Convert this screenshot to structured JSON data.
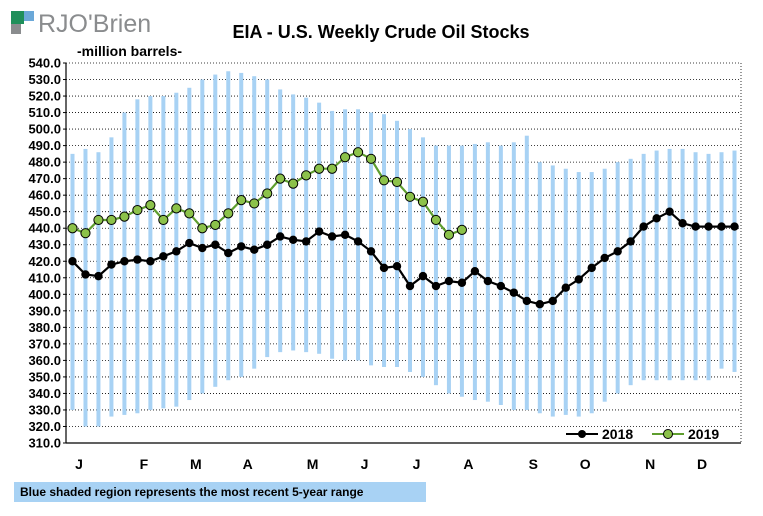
{
  "brand": {
    "name": "RJO'Brien",
    "logo_colors": [
      "#1f8f5a",
      "#6ba8d8",
      "#8a8c8e"
    ]
  },
  "chart_data": {
    "type": "line",
    "title": "EIA - U.S. Weekly Crude Oil Stocks",
    "ylabel": "-million  barrels-",
    "ylim": [
      310,
      540
    ],
    "ytick_step": 10,
    "grid": true,
    "gridline_style": "dotted",
    "legend_position": "bottom-right",
    "x_weeks": 52,
    "month_labels": [
      {
        "label": "J",
        "week": 1
      },
      {
        "label": "F",
        "week": 6
      },
      {
        "label": "M",
        "week": 10
      },
      {
        "label": "A",
        "week": 14
      },
      {
        "label": "M",
        "week": 19
      },
      {
        "label": "J",
        "week": 23
      },
      {
        "label": "J",
        "week": 27
      },
      {
        "label": "A",
        "week": 31
      },
      {
        "label": "S",
        "week": 36
      },
      {
        "label": "O",
        "week": 40
      },
      {
        "label": "N",
        "week": 45
      },
      {
        "label": "D",
        "week": 49
      }
    ],
    "range": {
      "name": "5-year range",
      "color": "#a8d2f4",
      "min": [
        330,
        320,
        320,
        326,
        327,
        328,
        330,
        331,
        332,
        336,
        340,
        344,
        348,
        350,
        355,
        362,
        365,
        366,
        365,
        364,
        361,
        360,
        360,
        357,
        356,
        356,
        353,
        350,
        345,
        340,
        338,
        336,
        335,
        333,
        330,
        330,
        328,
        326,
        327,
        326,
        328,
        335,
        340,
        345,
        348,
        348,
        348,
        348,
        348,
        348,
        355,
        353
      ],
      "max": [
        485,
        488,
        486,
        495,
        510,
        518,
        520,
        520,
        522,
        525,
        530,
        533,
        535,
        534,
        532,
        530,
        524,
        521,
        519,
        516,
        511,
        512,
        512,
        510,
        509,
        505,
        500,
        495,
        490,
        490,
        490,
        491,
        492,
        490,
        492,
        496,
        480,
        478,
        476,
        474,
        474,
        476,
        480,
        482,
        485,
        487,
        488,
        488,
        486,
        485,
        486,
        487
      ]
    },
    "series": [
      {
        "name": "2018",
        "color": "#000000",
        "marker_color": "#000000",
        "values": [
          420,
          412,
          411,
          418,
          420,
          421,
          420,
          423,
          426,
          431,
          428,
          430,
          425,
          429,
          427,
          430,
          435,
          433,
          432,
          438,
          435,
          436,
          432,
          426,
          416,
          417,
          405,
          411,
          405,
          408,
          407,
          414,
          408,
          405,
          401,
          396,
          394,
          396,
          404,
          409,
          416,
          422,
          426,
          432,
          441,
          446,
          450,
          443,
          441,
          441,
          441,
          441
        ]
      },
      {
        "name": "2019",
        "color": "#5e9e2e",
        "marker_color": "#8cc24a",
        "values": [
          440,
          437,
          445,
          445,
          447,
          451,
          454,
          445,
          452,
          449,
          440,
          442,
          449,
          457,
          455,
          461,
          470,
          467,
          472,
          476,
          476,
          483,
          486,
          482,
          469,
          468,
          459,
          456,
          445,
          436,
          439
        ]
      }
    ]
  },
  "footnote": "Blue shaded region represents the most recent 5-year range"
}
